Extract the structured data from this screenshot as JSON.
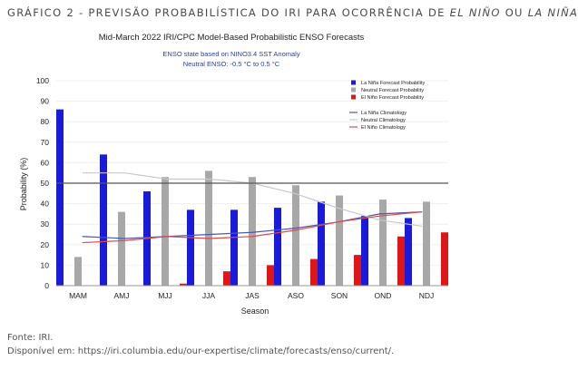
{
  "page": {
    "heading_prefix": "GRÁFICO 2 - PREVISÃO PROBABILÍSTICA DO IRI PARA OCORRÊNCIA DE ",
    "heading_el_nino": "EL NIÑO",
    "heading_mid": " OU ",
    "heading_la_nina": "LA NIÑA",
    "source": "Fonte: IRI.",
    "available": "Disponível em: https://iri.columbia.edu/our-expertise/climate/forecasts/enso/current/."
  },
  "colors": {
    "la_nina": "#1a1adb",
    "neutral": "#a8a8a8",
    "el_nino": "#e01515",
    "la_nina_clim": "#4a5aa8",
    "neutral_clim": "#c8c8c8",
    "el_nino_clim": "#e04a4a",
    "ref_line": "#555555"
  },
  "chart_data": {
    "type": "bar",
    "title": "Mid-March 2022 IRI/CPC Model-Based Probabilistic ENSO Forecasts",
    "subtitle_1": "ENSO state based on NINO3.4 SST Anomaly",
    "subtitle_2": "Neutral ENSO: -0.5 °C to 0.5 °C",
    "xlabel": "Season",
    "ylabel": "Probability (%)",
    "ylim": [
      0,
      100
    ],
    "yticks": [
      0,
      10,
      20,
      30,
      40,
      50,
      60,
      70,
      80,
      90,
      100
    ],
    "reference_line": 50,
    "legend_position": "top-right",
    "categories": [
      "MAM",
      "AMJ",
      "MJJ",
      "JJA",
      "JAS",
      "ASO",
      "SON",
      "OND",
      "NDJ"
    ],
    "series": [
      {
        "name": "La Niña Forecast Probability",
        "kind": "bar",
        "color_key": "la_nina",
        "values": [
          86,
          64,
          46,
          37,
          37,
          38,
          41,
          34,
          33
        ]
      },
      {
        "name": "Neutral Forecast Probability",
        "kind": "bar",
        "color_key": "neutral",
        "values": [
          14,
          36,
          53,
          56,
          53,
          49,
          44,
          42,
          41
        ]
      },
      {
        "name": "El Niño Forecast Probability",
        "kind": "bar",
        "color_key": "el_nino",
        "values": [
          0,
          0,
          1,
          7,
          10,
          13,
          15,
          24,
          26
        ]
      },
      {
        "name": "La Niña Climatology",
        "kind": "line",
        "color_key": "la_nina_clim",
        "values": [
          24,
          23,
          24,
          25,
          26,
          28,
          31,
          35,
          36
        ]
      },
      {
        "name": "Neutral Climatology",
        "kind": "line",
        "color_key": "neutral_clim",
        "values": [
          55,
          55,
          52,
          52,
          50,
          45,
          38,
          32,
          29
        ]
      },
      {
        "name": "El Niño Climatology",
        "kind": "line",
        "color_key": "el_nino_clim",
        "values": [
          21,
          22,
          24,
          23,
          24,
          27,
          31,
          34,
          36
        ]
      }
    ]
  }
}
